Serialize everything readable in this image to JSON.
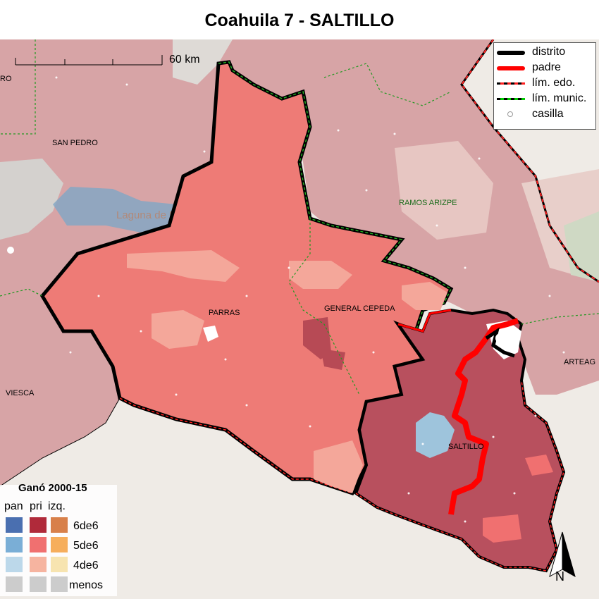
{
  "title": "Coahuila 7 - SALTILLO",
  "scale_bar": {
    "label": "60 km"
  },
  "legend": {
    "items": [
      {
        "label": "distrito",
        "color": "#000000",
        "style": "thick-line"
      },
      {
        "label": "padre",
        "color": "#ff0000",
        "style": "thick-line"
      },
      {
        "label": "lím. edo.",
        "color": "#ff0000",
        "style": "dashed-black-red"
      },
      {
        "label": "lím. munic.",
        "color": "#00cc00",
        "style": "dashed-black-green"
      },
      {
        "label": "casilla",
        "color": "#999999",
        "style": "circle"
      }
    ]
  },
  "places": {
    "ro": "RO",
    "san_pedro": "SAN PEDRO",
    "ramos_arizpe": "RAMOS ARIZPE",
    "parras": "PARRAS",
    "general_cepeda": "GENERAL CEPEDA",
    "arteaga": "ARTEAG",
    "viesca": "VIESCA",
    "saltillo": "SALTILLO",
    "laguna": "Laguna de Mayrán"
  },
  "won_legend": {
    "title": "Ganó 2000-15",
    "columns": [
      "pan",
      "pri",
      "izq."
    ],
    "rows": [
      {
        "label": "6de6",
        "colors": [
          "#4a6fb0",
          "#b02a3a",
          "#d8804a"
        ]
      },
      {
        "label": "5de6",
        "colors": [
          "#7aaed6",
          "#f07070",
          "#f6ae5c"
        ]
      },
      {
        "label": "4de6",
        "colors": [
          "#bcd8ea",
          "#f6b4a0",
          "#f7e4b0"
        ]
      },
      {
        "label": "menos",
        "colors": [
          "#cccccc",
          "#cccccc",
          "#cccccc"
        ]
      }
    ]
  },
  "north": {
    "label": "N"
  }
}
